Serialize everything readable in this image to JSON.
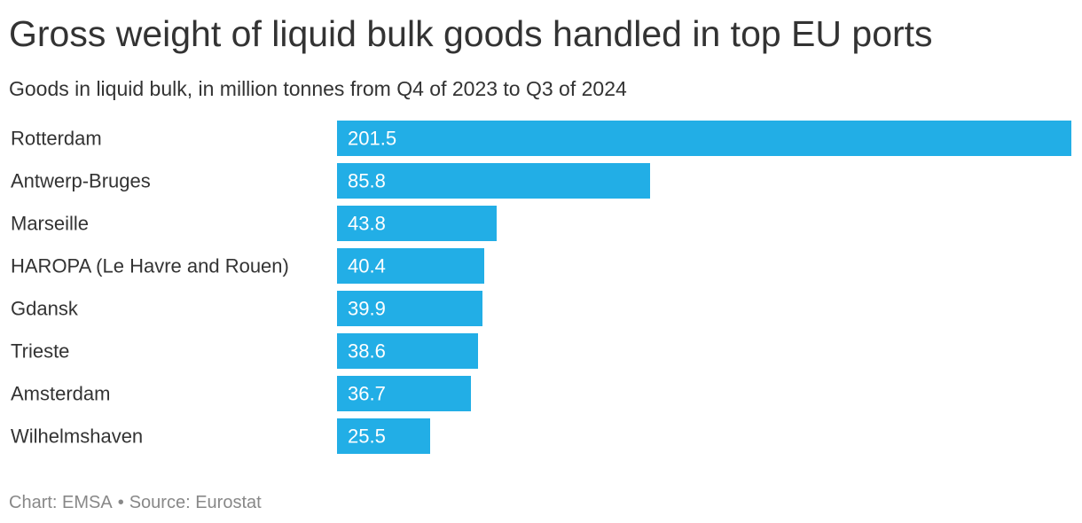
{
  "chart_data": {
    "type": "bar",
    "orientation": "horizontal",
    "title": "Gross weight of liquid bulk goods handled in top EU ports",
    "subtitle": "Goods in liquid bulk, in million tonnes from Q4 of 2023 to Q3 of 2024",
    "categories": [
      "Rotterdam",
      "Antwerp-Bruges",
      "Marseille",
      "HAROPA (Le Havre and Rouen)",
      "Gdansk",
      "Trieste",
      "Amsterdam",
      "Wilhelmshaven"
    ],
    "values": [
      201.5,
      85.8,
      43.8,
      40.4,
      39.9,
      38.6,
      36.7,
      25.5
    ],
    "value_labels": [
      "201.5",
      "85.8",
      "43.8",
      "40.4",
      "39.9",
      "38.6",
      "36.7",
      "25.5"
    ],
    "xlim": [
      0,
      201.5
    ],
    "bar_color": "#22aee6",
    "grid": false,
    "legend": "none"
  },
  "footer": {
    "chart_credit": "Chart: EMSA",
    "separator": "•",
    "source": "Source: Eurostat"
  },
  "colors": {
    "text": "#333333",
    "footer_text": "#888888",
    "value_text": "#ffffff"
  }
}
